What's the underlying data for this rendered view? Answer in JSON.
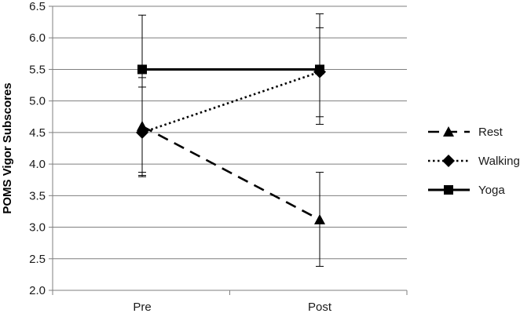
{
  "chart_data": {
    "type": "line",
    "title": "",
    "xlabel": "",
    "ylabel": "POMS Vigor Subscores",
    "categories": [
      "Pre",
      "Post"
    ],
    "ylim": [
      2.0,
      6.5
    ],
    "yticks": [
      "2.0",
      "2.5",
      "3.0",
      "3.5",
      "4.0",
      "4.5",
      "5.0",
      "5.5",
      "6.0",
      "6.5"
    ],
    "grid": true,
    "legend_position": "right",
    "series": [
      {
        "name": "Rest",
        "values": [
          4.6,
          3.12
        ],
        "error_low": [
          3.82,
          2.38
        ],
        "error_high": [
          5.22,
          3.87
        ],
        "line_style": "dashed",
        "marker": "triangle",
        "color": "#000000"
      },
      {
        "name": "Walking",
        "values": [
          4.5,
          5.46
        ],
        "error_low": [
          3.8,
          4.75
        ],
        "error_high": [
          5.37,
          6.16
        ],
        "line_style": "dotted",
        "marker": "diamond",
        "color": "#000000"
      },
      {
        "name": "Yoga",
        "values": [
          5.5,
          5.5
        ],
        "error_low": [
          3.87,
          4.63
        ],
        "error_high": [
          6.36,
          6.38
        ],
        "line_style": "solid",
        "marker": "square",
        "color": "#000000"
      }
    ]
  }
}
